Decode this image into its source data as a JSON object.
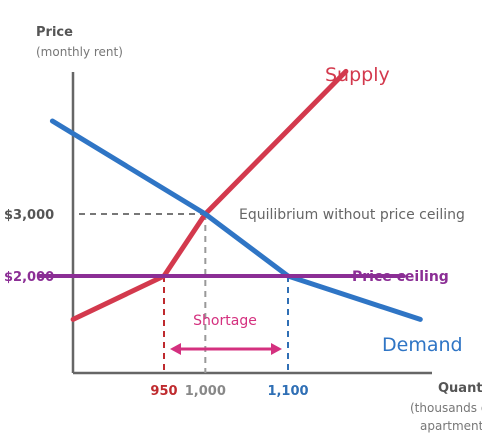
{
  "chart_data": {
    "type": "line",
    "title": "",
    "ylabel": "Price",
    "ylabel_sub": "(monthly rent)",
    "xlabel": "Quantity",
    "xlabel_sub_1": "(thousands of",
    "xlabel_sub_2": "apartments)",
    "y_ticks": [
      {
        "value": 3000,
        "label": "$3,000"
      },
      {
        "value": 2000,
        "label": "$2,000"
      }
    ],
    "x_ticks": [
      {
        "value": 950,
        "label": "950",
        "color": "#bf2a2e"
      },
      {
        "value": 1000,
        "label": "1,000",
        "color": "#888888"
      },
      {
        "value": 1100,
        "label": "1,100",
        "color": "#2f6fb5"
      }
    ],
    "series": [
      {
        "name": "Supply",
        "color": "#d3394d",
        "points": [
          [
            840,
            1300
          ],
          [
            950,
            2000
          ],
          [
            1000,
            3000
          ],
          [
            1170,
            5300
          ]
        ]
      },
      {
        "name": "Demand",
        "color": "#2f75c5",
        "points": [
          [
            815,
            4500
          ],
          [
            1000,
            3000
          ],
          [
            1100,
            2000
          ],
          [
            1260,
            1300
          ]
        ]
      },
      {
        "name": "Price ceiling",
        "color": "#8b2e95",
        "points": [
          [
            800,
            2000
          ],
          [
            1240,
            2000
          ]
        ]
      }
    ],
    "equilibrium": {
      "x": 1000,
      "y": 3000,
      "label": "Equilibrium without price ceiling"
    },
    "shortage": {
      "from": 950,
      "to": 1100,
      "label": "Shortage",
      "color": "#d4307f"
    },
    "axis_color": "#666666",
    "label_colors": {
      "price_tick": "#555555",
      "ceiling_tick": "#8b2e95"
    }
  }
}
